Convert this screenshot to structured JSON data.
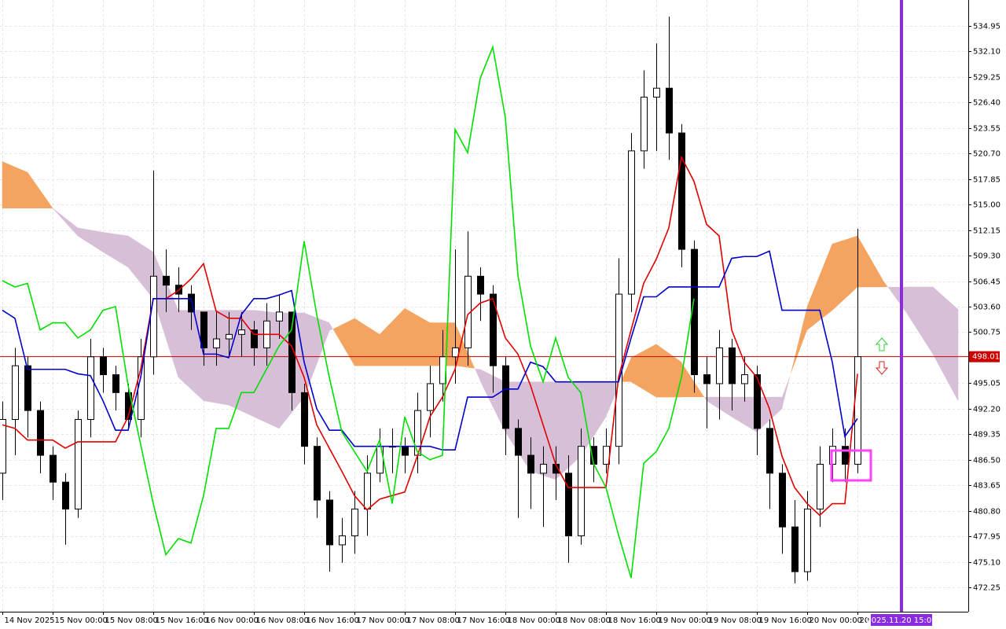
{
  "chart_data": {
    "type": "candlestick",
    "xlim": [
      -0.375,
      153.625
    ],
    "ylim": [
      469.53,
      537.85
    ],
    "grid": true,
    "xticks": [
      {
        "value": 0,
        "label": "14 Nov 2025"
      },
      {
        "value": 8,
        "label": "15 Nov 00:00"
      },
      {
        "value": 16,
        "label": "15 Nov 08:00"
      },
      {
        "value": 24,
        "label": "15 Nov 16:00"
      },
      {
        "value": 32,
        "label": "16 Nov 00:00"
      },
      {
        "value": 40,
        "label": "16 Nov 08:00"
      },
      {
        "value": 48,
        "label": "16 Nov 16:00"
      },
      {
        "value": 56,
        "label": "17 Nov 00:00"
      },
      {
        "value": 64,
        "label": "17 Nov 08:00"
      },
      {
        "value": 72,
        "label": "17 Nov 16:00"
      },
      {
        "value": 80,
        "label": "18 Nov 00:00"
      },
      {
        "value": 88,
        "label": "18 Nov 08:00"
      },
      {
        "value": 96,
        "label": "18 Nov 16:00"
      },
      {
        "value": 104,
        "label": "19 Nov 00:00"
      },
      {
        "value": 112,
        "label": "19 Nov 08:00"
      },
      {
        "value": 120,
        "label": "19 Nov 16:00"
      },
      {
        "value": 128,
        "label": "20 Nov 00:00"
      },
      {
        "value": 136,
        "label": "20 Nov 08:00"
      }
    ],
    "yticks": [
      534.95,
      {
        "value": 532.1,
        "label": "532.10"
      },
      529.25,
      {
        "value": 526.4,
        "label": "526.40"
      },
      523.55,
      {
        "value": 520.7,
        "label": "520.70"
      },
      517.85,
      {
        "value": 515,
        "label": "515.00"
      },
      512.15,
      {
        "value": 509.3,
        "label": "509.30"
      },
      506.45,
      {
        "value": 503.6,
        "label": "503.60"
      },
      500.75,
      495.05,
      {
        "value": 492.2,
        "label": "492.20"
      },
      489.35,
      {
        "value": 486.5,
        "label": "486.50"
      },
      483.65,
      {
        "value": 480.8,
        "label": "480.80"
      },
      477.95,
      {
        "value": 475.1,
        "label": "475.10"
      },
      472.25
    ],
    "candles": {
      "up_color": "#ffffff",
      "down_color": "#000000",
      "x": [
        0,
        2,
        4,
        6,
        8,
        10,
        12,
        14,
        16,
        18,
        20,
        22,
        24,
        26,
        28,
        30,
        32,
        34,
        36,
        38,
        40,
        42,
        44,
        46,
        48,
        50,
        52,
        54,
        56,
        58,
        60,
        62,
        64,
        66,
        68,
        70,
        72,
        74,
        76,
        78,
        80,
        82,
        84,
        86,
        88,
        90,
        92,
        94,
        96,
        98,
        100,
        102,
        104,
        106,
        108,
        110,
        112,
        114,
        116,
        118,
        120,
        122,
        124,
        126,
        128,
        130,
        132,
        134,
        136
      ],
      "open": [
        485,
        491,
        497,
        492,
        487,
        484,
        481,
        491,
        498,
        496,
        494,
        491,
        498,
        507,
        506,
        505,
        503,
        499,
        500,
        500.5,
        501,
        499,
        502,
        503,
        494,
        488,
        482,
        477,
        478,
        481,
        485,
        488,
        488,
        487,
        492,
        495,
        498,
        499,
        507,
        505,
        497,
        490,
        487,
        485,
        486,
        485,
        478,
        488,
        486,
        488,
        505,
        521,
        527,
        528,
        523,
        510,
        496,
        495,
        499,
        495,
        496,
        490,
        485,
        479,
        474,
        481,
        486,
        488,
        486
      ],
      "high": [
        493,
        499,
        498,
        493,
        488,
        485,
        492,
        500,
        499,
        497,
        495,
        500,
        518.8,
        510,
        508,
        506,
        503,
        503,
        503,
        503,
        502,
        504,
        505,
        503,
        495,
        489,
        483,
        480,
        483,
        487,
        490,
        490,
        489,
        494,
        497,
        501,
        510,
        512,
        508,
        506,
        498,
        491,
        489,
        488,
        488,
        487,
        490,
        489,
        490,
        509,
        523,
        530,
        533,
        536,
        524,
        511,
        498,
        501,
        500,
        498,
        497,
        491,
        486,
        482,
        483,
        488,
        490,
        490,
        512.3
      ],
      "low": [
        482,
        487,
        489,
        485,
        482,
        477,
        480,
        489,
        494,
        492,
        490,
        489,
        496,
        503,
        503,
        501,
        497,
        497,
        498,
        498,
        497,
        497,
        500,
        492,
        486,
        480,
        474,
        475,
        476,
        478,
        484,
        485,
        485,
        485,
        489,
        493,
        495,
        497,
        502,
        494,
        487,
        480,
        481,
        479,
        482,
        475,
        477,
        484,
        485,
        486,
        503,
        519,
        521,
        520,
        508,
        494,
        490,
        491,
        492,
        493,
        487,
        481,
        476,
        472.7,
        473,
        479,
        484,
        484,
        485
      ],
      "close": [
        491,
        497,
        492,
        487,
        484,
        481,
        491,
        498,
        496,
        494,
        491,
        498,
        507,
        506,
        505,
        503,
        499,
        500,
        500.5,
        501,
        499,
        502,
        503,
        494,
        488,
        482,
        477,
        478,
        481,
        485,
        488,
        488,
        487,
        492,
        495,
        498,
        499,
        507,
        505,
        497,
        490,
        487,
        485,
        486,
        485,
        478,
        488,
        486,
        488,
        505,
        521,
        527,
        528,
        523,
        510,
        496,
        495,
        499,
        495,
        496,
        490,
        485,
        479,
        474,
        481,
        486,
        488,
        486,
        498.01
      ]
    },
    "lines": [
      {
        "color": "#e00000",
        "x": [
          0,
          2,
          4,
          6,
          8,
          10,
          12,
          14,
          16,
          18,
          20,
          22,
          24,
          26,
          28,
          30,
          32,
          34,
          36,
          38,
          40,
          42,
          44,
          46,
          48,
          50,
          52,
          54,
          56,
          58,
          60,
          62,
          64,
          66,
          68,
          70,
          72,
          74,
          76,
          78,
          80,
          82,
          84,
          86,
          88,
          90,
          92,
          94,
          96,
          98,
          100,
          102,
          104,
          106,
          108,
          110,
          112,
          114,
          116,
          118,
          120,
          122,
          124,
          126,
          128,
          130,
          132,
          134,
          136
        ],
        "values": [
          490.4,
          490,
          488.7,
          488.7,
          488.7,
          487.8,
          488.5,
          488.5,
          488.5,
          488.5,
          491.3,
          496.6,
          504.5,
          504.5,
          505.4,
          506.7,
          508.4,
          503.1,
          502.3,
          502.3,
          500.5,
          500.5,
          500.5,
          499.2,
          495.7,
          490.4,
          487.8,
          485.2,
          482.5,
          480.9,
          482.1,
          482.5,
          482.9,
          486.9,
          491.3,
          493.5,
          496.6,
          502.7,
          504,
          504.5,
          500.1,
          498.3,
          494.8,
          490.4,
          486,
          483.4,
          483.4,
          483.4,
          483.4,
          495.7,
          501,
          506.2,
          508.9,
          512.4,
          520.3,
          517.6,
          512.8,
          511.5,
          501,
          497.4,
          495.7,
          492.2,
          486.9,
          483.4,
          481.6,
          480.3,
          481.6,
          481.6,
          496.1
        ]
      },
      {
        "color": "#0000cc",
        "x": [
          0,
          2,
          4,
          6,
          8,
          10,
          12,
          14,
          16,
          18,
          20,
          22,
          24,
          26,
          28,
          30,
          32,
          34,
          36,
          38,
          40,
          42,
          44,
          46,
          48,
          50,
          52,
          54,
          56,
          58,
          60,
          62,
          64,
          66,
          68,
          70,
          72,
          74,
          76,
          78,
          80,
          82,
          84,
          86,
          88,
          90,
          92,
          94,
          96,
          98,
          100,
          102,
          104,
          106,
          108,
          110,
          112,
          114,
          116,
          118,
          120,
          122,
          124,
          126,
          128,
          130,
          132,
          134,
          136
        ],
        "values": [
          503.2,
          502.3,
          496.6,
          496.6,
          496.6,
          496.6,
          496.1,
          495.9,
          493.1,
          489.8,
          489.8,
          495.7,
          504.5,
          504.5,
          504.5,
          504.5,
          498.3,
          498.3,
          497.9,
          502.7,
          504.5,
          504.5,
          504.9,
          505.4,
          497.4,
          492.2,
          489.8,
          489.8,
          488,
          488,
          488,
          488,
          488,
          488,
          488,
          487.6,
          487.6,
          493.5,
          493.5,
          493.5,
          494.4,
          494.4,
          497.4,
          496.9,
          495.2,
          495.2,
          495.2,
          495.2,
          495.2,
          495.2,
          500.1,
          504.7,
          504.7,
          505.8,
          505.8,
          505.8,
          505.8,
          505.8,
          509,
          509.2,
          509.2,
          509.8,
          503.2,
          503.2,
          503.2,
          503.2,
          497.4,
          489.1,
          491.1
        ]
      },
      {
        "color": "#00e000",
        "x": [
          0,
          2,
          4,
          6,
          8,
          10,
          12,
          14,
          16,
          18,
          20,
          22,
          24,
          26,
          28,
          30,
          32,
          34,
          36,
          38,
          40,
          42,
          44,
          46,
          48,
          50,
          52,
          54,
          56,
          58,
          60,
          62,
          64,
          66,
          68,
          70,
          72,
          74,
          76,
          78,
          80,
          82,
          84,
          86,
          88,
          90,
          92,
          94,
          96,
          98,
          100,
          102,
          104,
          106,
          108,
          110
        ],
        "values": [
          506.5,
          505.8,
          506.2,
          501,
          501.8,
          501.8,
          500.1,
          501,
          503.2,
          503.6,
          494.8,
          488.2,
          481.6,
          475.9,
          477.7,
          477.2,
          482.5,
          490,
          490,
          494,
          494,
          496.6,
          499.2,
          501,
          510.9,
          502.7,
          495.7,
          489.6,
          487.4,
          485.2,
          488.7,
          481.6,
          491.3,
          487.4,
          486.5,
          487,
          523.4,
          520.8,
          529.1,
          532.6,
          524.7,
          507.1,
          499.2,
          495.2,
          500.1,
          495.7,
          494,
          486.1,
          483.4,
          478.1,
          473.3,
          486.1,
          487.4,
          490,
          495.7,
          504.5
        ]
      }
    ],
    "cloud": {
      "up_color": "#f4a460",
      "down_color": "#d8bfd8",
      "x": [
        0,
        4,
        8,
        12,
        16,
        20,
        24,
        28,
        32,
        36,
        40,
        44,
        48,
        52,
        56,
        60,
        64,
        68,
        72,
        76,
        80,
        84,
        88,
        92,
        96,
        100,
        104,
        108,
        112,
        116,
        120,
        124,
        128,
        132,
        136,
        140,
        144,
        148,
        152
      ],
      "span_a": [
        519.8,
        518.6,
        514.6,
        511.5,
        509.7,
        508,
        504.5,
        495.7,
        493.1,
        492.6,
        491.3,
        490,
        493.5,
        500.9,
        502.3,
        500.5,
        503.4,
        501.8,
        501.8,
        495.3,
        489.6,
        485.2,
        484.3,
        486.9,
        491.3,
        497.9,
        499.4,
        497.4,
        493.1,
        491.3,
        489.6,
        492.2,
        503.6,
        510.6,
        511.5,
        506.6,
        502.7,
        498.3,
        493.1
      ],
      "span_b": [
        514.6,
        514.6,
        514.6,
        512.4,
        511.9,
        511.5,
        509.7,
        503.2,
        503.2,
        503.2,
        503.2,
        502.9,
        502.9,
        501.8,
        497,
        497,
        497,
        497,
        497,
        496.6,
        495.2,
        495.2,
        495.2,
        495.2,
        495.2,
        495.2,
        493.5,
        493.5,
        493.5,
        493.5,
        493.5,
        493.5,
        501,
        503.2,
        505.8,
        505.8,
        505.8,
        505.8,
        503.3
      ]
    },
    "current_price": 498.01,
    "current_price_color": "#cc0000",
    "time_marker": {
      "value": 143,
      "label": "2025.11.20 15:00"
    },
    "time_marker_color": "#8a2be2"
  }
}
